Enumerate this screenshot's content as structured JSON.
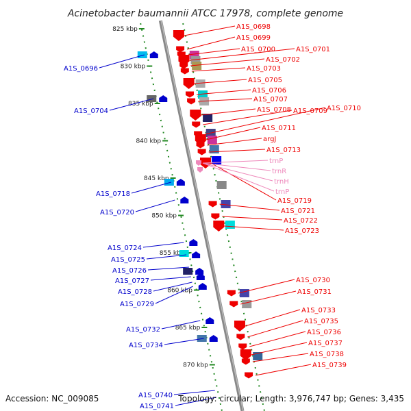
{
  "title": "Acinetobacter baumannii ATCC 17978, complete genome",
  "footer": {
    "accession": "Accession: NC_009085",
    "summary": "Topology: circular; Length: 3,976,747 bp; Genes: 3,435"
  },
  "colors": {
    "forward": "#0000cc",
    "reverse": "#ee0000",
    "rna": "#ee88bb",
    "scale": "#228822",
    "backbone": "#888888"
  },
  "kbp_marks": [
    {
      "label": "825 kbp",
      "kb": 825
    },
    {
      "label": "830 kbp",
      "kb": 830
    },
    {
      "label": "835 kbp",
      "kb": 835
    },
    {
      "label": "840 kbp",
      "kb": 840
    },
    {
      "label": "845 kbp",
      "kb": 845
    },
    {
      "label": "850 kbp",
      "kb": 850
    },
    {
      "label": "855 kbp",
      "kb": 855
    },
    {
      "label": "860 kbp",
      "kb": 860
    },
    {
      "label": "865 kbp",
      "kb": 865
    },
    {
      "label": "870 kbp",
      "kb": 870
    }
  ],
  "reverse_labels": [
    "A1S_0698",
    "A1S_0699",
    "A1S_0700",
    "A1S_0701",
    "A1S_0702",
    "A1S_0703",
    "A1S_0705",
    "A1S_0706",
    "A1S_0707",
    "A1S_0708",
    "A1S_0709",
    "A1S_0710",
    "A1S_0711",
    "argJ",
    "A1S_0713",
    "A1S_0719",
    "A1S_0721",
    "A1S_0722",
    "A1S_0723",
    "A1S_0730",
    "A1S_0731",
    "A1S_0733",
    "A1S_0735",
    "A1S_0736",
    "A1S_0737",
    "A1S_0738",
    "A1S_0739"
  ],
  "rna_labels": [
    "trnP",
    "trnR",
    "trnH",
    "trnP"
  ],
  "forward_labels": [
    "A1S_0696",
    "A1S_0704",
    "A1S_0718",
    "A1S_0720",
    "A1S_0724",
    "A1S_0725",
    "A1S_0726",
    "A1S_0727",
    "A1S_0728",
    "A1S_0729",
    "A1S_0732",
    "A1S_0734",
    "A1S_0740",
    "A1S_0741"
  ]
}
